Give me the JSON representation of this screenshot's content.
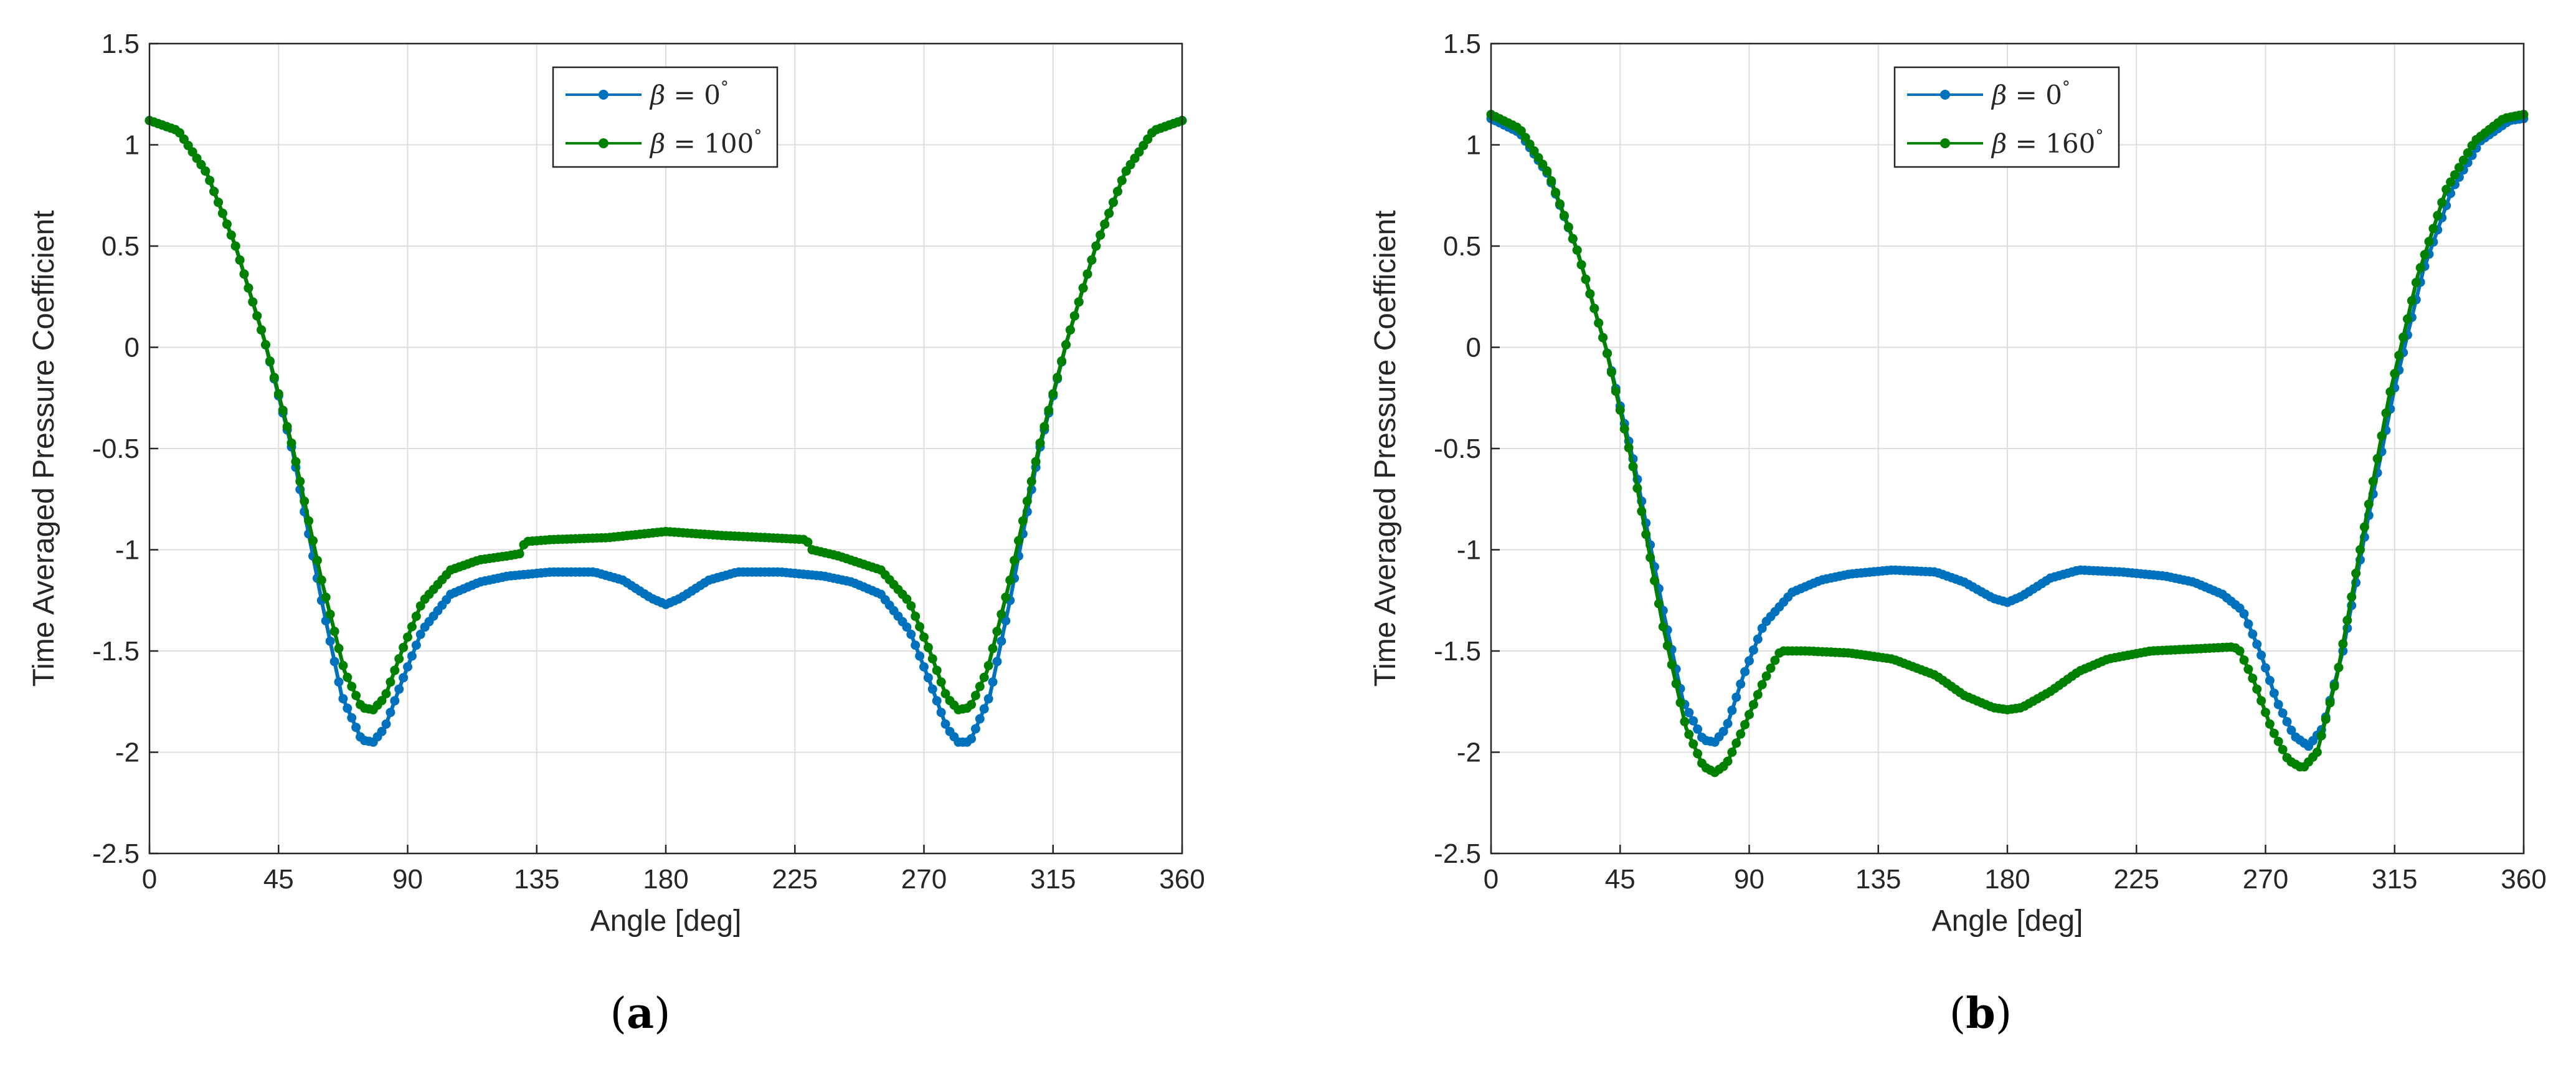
{
  "chart_data": [
    {
      "panel": "(a)",
      "panel_letter": "a",
      "type": "line",
      "xlabel": "Angle [deg]",
      "ylabel": "Time Averaged Pressure Coefficient",
      "xlim": [
        0,
        360
      ],
      "ylim": [
        -2.5,
        1.5
      ],
      "xticks": [
        0,
        45,
        90,
        135,
        180,
        225,
        270,
        315,
        360
      ],
      "yticks": [
        -2.5,
        -2,
        -1.5,
        -1,
        -0.5,
        0,
        0.5,
        1,
        1.5
      ],
      "grid": true,
      "legend_position": "top-center",
      "markers": true,
      "series": [
        {
          "name": "β = 0°",
          "name_prefix": "β = ",
          "name_value": "0",
          "name_degree": "°",
          "color": "#0072BD",
          "points": [
            [
              0,
              1.12
            ],
            [
              10,
              1.07
            ],
            [
              20,
              0.86
            ],
            [
              30,
              0.5
            ],
            [
              40,
              0.04
            ],
            [
              50,
              -0.52
            ],
            [
              60,
              -1.25
            ],
            [
              67,
              -1.72
            ],
            [
              74,
              -1.94
            ],
            [
              78,
              -1.95
            ],
            [
              82,
              -1.88
            ],
            [
              88,
              -1.65
            ],
            [
              95,
              -1.4
            ],
            [
              105,
              -1.22
            ],
            [
              115,
              -1.16
            ],
            [
              125,
              -1.13
            ],
            [
              140,
              -1.11
            ],
            [
              155,
              -1.11
            ],
            [
              165,
              -1.15
            ],
            [
              175,
              -1.24
            ],
            [
              180,
              -1.27
            ],
            [
              185,
              -1.24
            ],
            [
              195,
              -1.15
            ],
            [
              205,
              -1.11
            ],
            [
              220,
              -1.11
            ],
            [
              235,
              -1.13
            ],
            [
              245,
              -1.16
            ],
            [
              255,
              -1.22
            ],
            [
              265,
              -1.4
            ],
            [
              272,
              -1.65
            ],
            [
              278,
              -1.88
            ],
            [
              282,
              -1.95
            ],
            [
              286,
              -1.95
            ],
            [
              293,
              -1.72
            ],
            [
              300,
              -1.25
            ],
            [
              310,
              -0.52
            ],
            [
              320,
              0.04
            ],
            [
              330,
              0.5
            ],
            [
              340,
              0.86
            ],
            [
              350,
              1.07
            ],
            [
              360,
              1.12
            ]
          ]
        },
        {
          "name": "β = 100°",
          "name_prefix": "β = ",
          "name_value": "100",
          "name_degree": "°",
          "color": "#008000",
          "points": [
            [
              0,
              1.12
            ],
            [
              10,
              1.07
            ],
            [
              20,
              0.86
            ],
            [
              30,
              0.5
            ],
            [
              40,
              0.04
            ],
            [
              50,
              -0.5
            ],
            [
              60,
              -1.15
            ],
            [
              68,
              -1.6
            ],
            [
              74,
              -1.78
            ],
            [
              78,
              -1.79
            ],
            [
              82,
              -1.73
            ],
            [
              88,
              -1.5
            ],
            [
              95,
              -1.26
            ],
            [
              105,
              -1.1
            ],
            [
              115,
              -1.05
            ],
            [
              125,
              -1.03
            ],
            [
              129,
              -1.02
            ],
            [
              131,
              -0.96
            ],
            [
              140,
              -0.95
            ],
            [
              160,
              -0.94
            ],
            [
              180,
              -0.91
            ],
            [
              200,
              -0.93
            ],
            [
              215,
              -0.94
            ],
            [
              229,
              -0.95
            ],
            [
              231,
              -1.0
            ],
            [
              240,
              -1.03
            ],
            [
              255,
              -1.1
            ],
            [
              265,
              -1.26
            ],
            [
              272,
              -1.5
            ],
            [
              278,
              -1.73
            ],
            [
              282,
              -1.79
            ],
            [
              286,
              -1.78
            ],
            [
              292,
              -1.6
            ],
            [
              300,
              -1.15
            ],
            [
              310,
              -0.5
            ],
            [
              320,
              0.04
            ],
            [
              330,
              0.5
            ],
            [
              340,
              0.86
            ],
            [
              350,
              1.07
            ],
            [
              360,
              1.12
            ]
          ]
        }
      ]
    },
    {
      "panel": "(b)",
      "panel_letter": "b",
      "type": "line",
      "xlabel": "Angle [deg]",
      "ylabel": "Time Averaged Pressure Coefficient",
      "xlim": [
        0,
        360
      ],
      "ylim": [
        -2.5,
        1.5
      ],
      "xticks": [
        0,
        45,
        90,
        135,
        180,
        225,
        270,
        315,
        360
      ],
      "yticks": [
        -2.5,
        -2,
        -1.5,
        -1,
        -0.5,
        0,
        0.5,
        1,
        1.5
      ],
      "grid": true,
      "legend_position": "top-center",
      "markers": true,
      "series": [
        {
          "name": "β = 0°",
          "name_prefix": "β = ",
          "name_value": "0",
          "name_degree": "°",
          "color": "#0072BD",
          "points": [
            [
              0,
              1.13
            ],
            [
              10,
              1.06
            ],
            [
              20,
              0.85
            ],
            [
              30,
              0.48
            ],
            [
              40,
              0.0
            ],
            [
              50,
              -0.58
            ],
            [
              60,
              -1.3
            ],
            [
              67,
              -1.75
            ],
            [
              74,
              -1.94
            ],
            [
              78,
              -1.95
            ],
            [
              82,
              -1.88
            ],
            [
              88,
              -1.62
            ],
            [
              95,
              -1.37
            ],
            [
              105,
              -1.21
            ],
            [
              115,
              -1.15
            ],
            [
              125,
              -1.12
            ],
            [
              140,
              -1.1
            ],
            [
              155,
              -1.11
            ],
            [
              165,
              -1.16
            ],
            [
              175,
              -1.24
            ],
            [
              180,
              -1.26
            ],
            [
              185,
              -1.23
            ],
            [
              195,
              -1.14
            ],
            [
              205,
              -1.1
            ],
            [
              220,
              -1.11
            ],
            [
              235,
              -1.13
            ],
            [
              245,
              -1.16
            ],
            [
              255,
              -1.22
            ],
            [
              262,
              -1.3
            ],
            [
              268,
              -1.5
            ],
            [
              274,
              -1.75
            ],
            [
              280,
              -1.92
            ],
            [
              285,
              -1.97
            ],
            [
              290,
              -1.88
            ],
            [
              297,
              -1.5
            ],
            [
              305,
              -0.9
            ],
            [
              315,
              -0.2
            ],
            [
              325,
              0.38
            ],
            [
              335,
              0.78
            ],
            [
              345,
              1.02
            ],
            [
              355,
              1.12
            ],
            [
              360,
              1.13
            ]
          ]
        },
        {
          "name": "β = 160°",
          "name_prefix": "β = ",
          "name_value": "160",
          "name_degree": "°",
          "color": "#008000",
          "points": [
            [
              0,
              1.15
            ],
            [
              10,
              1.08
            ],
            [
              20,
              0.86
            ],
            [
              30,
              0.48
            ],
            [
              40,
              0.0
            ],
            [
              50,
              -0.62
            ],
            [
              60,
              -1.38
            ],
            [
              68,
              -1.88
            ],
            [
              74,
              -2.07
            ],
            [
              78,
              -2.1
            ],
            [
              82,
              -2.06
            ],
            [
              88,
              -1.88
            ],
            [
              95,
              -1.65
            ],
            [
              100,
              -1.52
            ],
            [
              101,
              -1.5
            ],
            [
              110,
              -1.5
            ],
            [
              125,
              -1.51
            ],
            [
              140,
              -1.54
            ],
            [
              155,
              -1.62
            ],
            [
              165,
              -1.72
            ],
            [
              175,
              -1.78
            ],
            [
              180,
              -1.79
            ],
            [
              185,
              -1.78
            ],
            [
              195,
              -1.7
            ],
            [
              205,
              -1.6
            ],
            [
              215,
              -1.54
            ],
            [
              230,
              -1.5
            ],
            [
              245,
              -1.49
            ],
            [
              259,
              -1.48
            ],
            [
              261,
              -1.5
            ],
            [
              266,
              -1.65
            ],
            [
              272,
              -1.88
            ],
            [
              278,
              -2.04
            ],
            [
              283,
              -2.08
            ],
            [
              288,
              -2.0
            ],
            [
              295,
              -1.62
            ],
            [
              303,
              -1.0
            ],
            [
              313,
              -0.25
            ],
            [
              323,
              0.35
            ],
            [
              333,
              0.78
            ],
            [
              343,
              1.02
            ],
            [
              353,
              1.13
            ],
            [
              360,
              1.15
            ]
          ]
        }
      ]
    }
  ]
}
